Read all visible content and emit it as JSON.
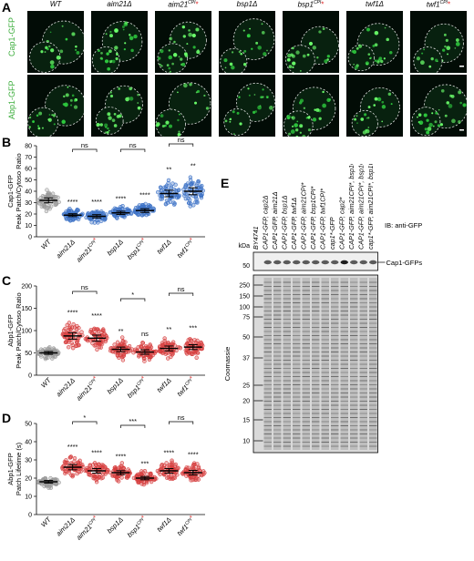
{
  "panel_letters": {
    "a": "A",
    "b": "B",
    "c": "C",
    "d": "D",
    "e": "E"
  },
  "genotypes": [
    "WT",
    "aim21Δ",
    "aim21",
    "bsp1Δ",
    "bsp1",
    "twf1Δ",
    "twf1"
  ],
  "cpi_superscript": "CPI",
  "star": "*",
  "rows": {
    "cap1": "Cap1-GFP",
    "abp1": "Abp1-GFP"
  },
  "charts": {
    "b": {
      "ylabel": [
        "Cap1-GFP",
        "Peak Patch/Cytoso Ratio"
      ],
      "yticks": [
        "0",
        "10",
        "20",
        "30",
        "40",
        "50",
        "60",
        "70",
        "80"
      ]
    },
    "c": {
      "ylabel": [
        "Abp1-GFP",
        "Peak Patch/Cytoso Ratio"
      ],
      "yticks": [
        "0",
        "50",
        "100",
        "150",
        "200"
      ]
    },
    "d": {
      "ylabel": [
        "Abp1-GFP",
        "Patch Lifetime (s)"
      ],
      "yticks": [
        "0",
        "10",
        "20",
        "30",
        "40",
        "50"
      ]
    }
  },
  "chart_data": [
    {
      "type": "scatter",
      "panel": "B",
      "categories": [
        "WT",
        "aim21Δ",
        "aim21CPI*",
        "bsp1Δ",
        "bsp1CPI*",
        "twf1Δ",
        "twf1CPI*"
      ],
      "values": [
        32,
        19,
        18,
        21,
        23,
        38,
        40
      ],
      "ylim": [
        0,
        80
      ],
      "significance": [
        "",
        "****",
        "****",
        "****",
        "****",
        "**",
        "**"
      ],
      "brackets": [
        {
          "from": 1,
          "to": 2,
          "label": "ns"
        },
        {
          "from": 3,
          "to": 4,
          "label": "ns"
        },
        {
          "from": 5,
          "to": 6,
          "label": "ns"
        }
      ]
    },
    {
      "type": "scatter",
      "panel": "C",
      "categories": [
        "WT",
        "aim21Δ",
        "aim21CPI*",
        "bsp1Δ",
        "bsp1CPI*",
        "twf1Δ",
        "twf1CPI*"
      ],
      "values": [
        50,
        88,
        83,
        58,
        52,
        60,
        63
      ],
      "ylim": [
        0,
        200
      ],
      "significance": [
        "",
        "****",
        "****",
        "**",
        "ns",
        "**",
        "***"
      ],
      "brackets": [
        {
          "from": 1,
          "to": 2,
          "label": "ns"
        },
        {
          "from": 3,
          "to": 4,
          "label": "*"
        },
        {
          "from": 5,
          "to": 6,
          "label": "ns"
        }
      ]
    },
    {
      "type": "scatter",
      "panel": "D",
      "categories": [
        "WT",
        "aim21Δ",
        "aim21CPI*",
        "bsp1Δ",
        "bsp1CPI*",
        "twf1Δ",
        "twf1CPI*"
      ],
      "values": [
        18,
        26,
        24,
        23,
        20,
        24,
        23
      ],
      "ylim": [
        0,
        50
      ],
      "significance": [
        "",
        "****",
        "****",
        "****",
        "***",
        "****",
        "****"
      ],
      "brackets": [
        {
          "from": 1,
          "to": 2,
          "label": "*"
        },
        {
          "from": 3,
          "to": 4,
          "label": "***"
        },
        {
          "from": 5,
          "to": 6,
          "label": "ns"
        }
      ]
    }
  ],
  "blot": {
    "kda": "kDa",
    "lanes": [
      "BY4741",
      "CAP1-GFP, cap2Δ",
      "CAP1-GFP, aim21Δ",
      "CAP1-GFP, bsp1Δ",
      "CAP1-GFP, twf1Δ",
      "CAP1-GFP, aim21CPI*",
      "CAP1-GFP, bsp1CPI*",
      "CAP1-GFP, twf1CPI*",
      "cap1*-GFP",
      "CAP1-GFP, cap2*",
      "CAP1-GFP, aim21CPI*, bsp1CPI*",
      "CAP1-GFP, aim21CPI*, bsp1CPI*, twf1CPI*",
      "cap1*-GFP, aim21CPI*, bsp1CPI*"
    ],
    "ib": "IB: anti-GFP",
    "band": "Cap1-GFPs",
    "top_marker": "50",
    "coomassie": "Coomassie",
    "markers": [
      "250",
      "150",
      "100",
      "75",
      "50",
      "37",
      "25",
      "20",
      "15",
      "10"
    ]
  }
}
